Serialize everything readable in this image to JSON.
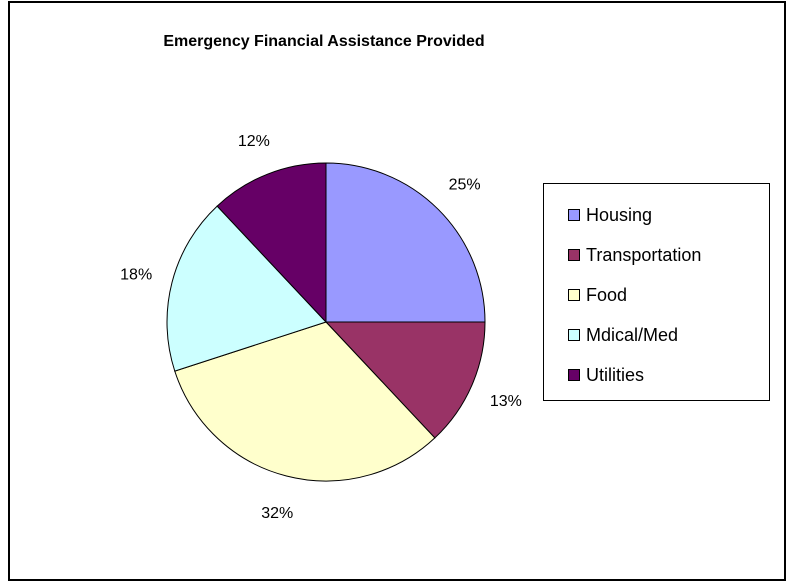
{
  "chart_data": {
    "type": "pie",
    "title": "Emergency Financial Assistance Provided",
    "categories": [
      "Housing",
      "Transportation",
      "Food",
      "Mdical/Med",
      "Utilities"
    ],
    "values": [
      25,
      13,
      32,
      18,
      12
    ],
    "labels": [
      "25%",
      "13%",
      "32%",
      "18%",
      "12%"
    ],
    "colors": [
      "#9999ff",
      "#993366",
      "#ffffcc",
      "#ccffff",
      "#660066"
    ],
    "legend_placement": "right",
    "start_angle_deg": 0,
    "direction": "clockwise"
  }
}
